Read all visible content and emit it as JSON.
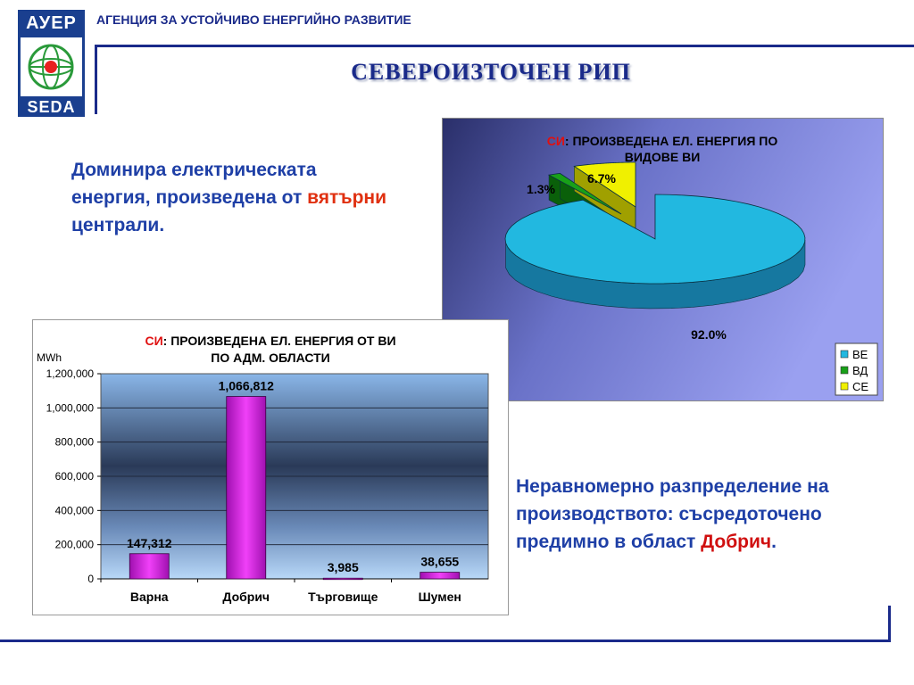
{
  "header": {
    "logo_top": "АУЕР",
    "logo_bottom": "SEDA",
    "agency": "АГЕНЦИЯ ЗА УСТОЙЧИВО ЕНЕРГИЙНО РАЗВИТИЕ",
    "title": "СЕВЕРОИЗТОЧЕН РИП"
  },
  "left_text": {
    "part1": "Доминира електрическата енергия, произведена от ",
    "highlight": "вятърни",
    "part2": " централи."
  },
  "right_text": {
    "part1": "Неравномерно разпределение на производството: съсредоточено предимно в област ",
    "highlight": "Добрич",
    "part2": "."
  },
  "colors": {
    "accent_blue": "#1e3fa6",
    "dark_blue": "#1a2a8a",
    "highlight_red": "#e03010",
    "bar_fill": "#d01ad8",
    "pie_wind": "#22b8e0",
    "pie_hydro": "#18a018",
    "pie_solar": "#f0f000"
  },
  "chart_data": [
    {
      "type": "pie",
      "title_prefix": "СИ",
      "title": ": ПРОИЗВЕДЕНА ЕЛ. ЕНЕРГИЯ ПО ВИДОВЕ ВИ",
      "labels": [
        "ВЕ",
        "ВД",
        "СЕ"
      ],
      "values": [
        92.0,
        1.3,
        6.7
      ],
      "value_labels": [
        "92.0%",
        "1.3%",
        "6.7%"
      ],
      "legend": "right-bottom"
    },
    {
      "type": "bar",
      "title_prefix": "СИ",
      "title": ": ПРОИЗВЕДЕНА ЕЛ. ЕНЕРГИЯ ОТ ВИ ПО АДМ. ОБЛАСТИ",
      "ylabel": "MWh",
      "categories": [
        "Варна",
        "Добрич",
        "Търговище",
        "Шумен"
      ],
      "values": [
        147312,
        1066812,
        3985,
        38655
      ],
      "value_labels": [
        "147,312",
        "1,066,812",
        "3,985",
        "38,655"
      ],
      "ylim": [
        0,
        1200000
      ],
      "yticks": [
        0,
        200000,
        400000,
        600000,
        800000,
        1000000,
        1200000
      ],
      "ytick_labels": [
        "0",
        "200,000",
        "400,000",
        "600,000",
        "800,000",
        "1,000,000",
        "1,200,000"
      ],
      "grid": true
    }
  ]
}
